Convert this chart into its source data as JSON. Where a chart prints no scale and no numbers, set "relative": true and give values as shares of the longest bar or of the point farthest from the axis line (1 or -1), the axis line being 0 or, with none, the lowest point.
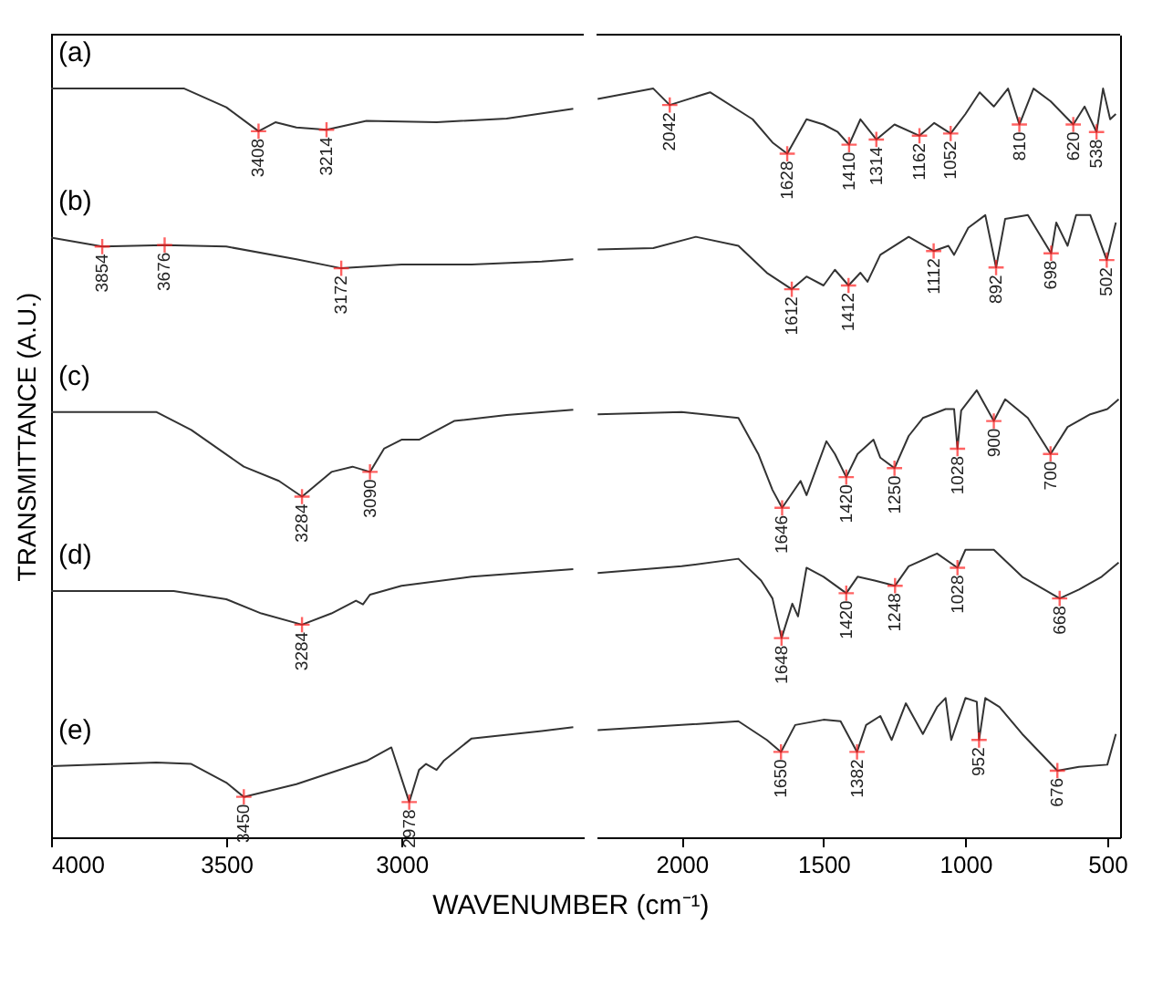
{
  "chart_data": [
    {
      "type": "line",
      "relative": true,
      "xlabel": "WAVENUMBER (cm⁻¹)",
      "ylabel": "TRANSMITTANCE (A.U.)",
      "xlim": [
        4000,
        2480
      ],
      "xticks": [
        4000,
        3500,
        3000
      ],
      "series": [
        {
          "name": "(a)",
          "color": "#333333",
          "x": [
            4000,
            3620,
            3500,
            3408,
            3360,
            3300,
            3214,
            3100,
            2900,
            2700,
            2510
          ],
          "values": [
            1.0,
            1.0,
            0.975,
            0.943,
            0.955,
            0.948,
            0.945,
            0.957,
            0.955,
            0.96,
            0.973
          ]
        },
        {
          "name": "(b)",
          "color": "#333333",
          "x": [
            4000,
            3854,
            3676,
            3500,
            3300,
            3172,
            3000,
            2800,
            2600,
            2510
          ],
          "values": [
            0.801,
            0.789,
            0.791,
            0.789,
            0.772,
            0.76,
            0.765,
            0.765,
            0.769,
            0.772
          ]
        },
        {
          "name": "(c)",
          "color": "#333333",
          "x": [
            4000,
            3700,
            3600,
            3450,
            3350,
            3284,
            3200,
            3140,
            3090,
            3050,
            3000,
            2950,
            2850,
            2700,
            2510
          ],
          "values": [
            0.568,
            0.568,
            0.544,
            0.495,
            0.476,
            0.455,
            0.488,
            0.495,
            0.488,
            0.519,
            0.531,
            0.531,
            0.556,
            0.564,
            0.571
          ]
        },
        {
          "name": "(d)",
          "color": "#333333",
          "x": [
            4000,
            3650,
            3500,
            3400,
            3284,
            3200,
            3130,
            3110,
            3090,
            3000,
            2800,
            2510
          ],
          "values": [
            0.329,
            0.329,
            0.318,
            0.299,
            0.284,
            0.299,
            0.316,
            0.311,
            0.324,
            0.336,
            0.348,
            0.358
          ]
        },
        {
          "name": "(e)",
          "color": "#333333",
          "x": [
            4000,
            3700,
            3600,
            3500,
            3450,
            3300,
            3100,
            3029,
            2978,
            2950,
            2930,
            2900,
            2880,
            2800,
            2600,
            2510
          ],
          "values": [
            0.095,
            0.1,
            0.098,
            0.073,
            0.054,
            0.071,
            0.102,
            0.12,
            0.047,
            0.09,
            0.098,
            0.09,
            0.102,
            0.132,
            0.142,
            0.147
          ]
        }
      ],
      "annotations": [
        {
          "text": "3408",
          "x": 3408,
          "y": 0.943
        },
        {
          "text": "3214",
          "x": 3214,
          "y": 0.945
        },
        {
          "text": "3854",
          "x": 3854,
          "y": 0.789
        },
        {
          "text": "3676",
          "x": 3676,
          "y": 0.791
        },
        {
          "text": "3172",
          "x": 3172,
          "y": 0.76
        },
        {
          "text": "3284",
          "x": 3284,
          "y": 0.455
        },
        {
          "text": "3090",
          "x": 3090,
          "y": 0.488
        },
        {
          "text": "3284",
          "x": 3284,
          "y": 0.284
        },
        {
          "text": "3450",
          "x": 3450,
          "y": 0.054
        },
        {
          "text": "2978",
          "x": 2978,
          "y": 0.047
        }
      ]
    },
    {
      "type": "line",
      "relative": true,
      "xlim": [
        2300,
        455
      ],
      "xticks": [
        2000,
        1500,
        1000,
        500
      ],
      "series": [
        {
          "color": "#333333",
          "x": [
            2296,
            2100,
            2042,
            1900,
            1750,
            1680,
            1628,
            1560,
            1500,
            1450,
            1410,
            1370,
            1314,
            1250,
            1162,
            1110,
            1052,
            1000,
            950,
            900,
            850,
            810,
            760,
            700,
            620,
            580,
            538,
            515,
            490,
            470
          ],
          "values": [
            0.986,
            1.0,
            0.978,
            0.995,
            0.959,
            0.928,
            0.913,
            0.959,
            0.952,
            0.942,
            0.925,
            0.959,
            0.932,
            0.952,
            0.937,
            0.954,
            0.94,
            0.966,
            0.995,
            0.976,
            1.0,
            0.952,
            1.0,
            0.983,
            0.952,
            0.976,
            0.942,
            1.0,
            0.959,
            0.966
          ]
        },
        {
          "color": "#333333",
          "x": [
            2296,
            2100,
            1950,
            1800,
            1700,
            1612,
            1560,
            1500,
            1460,
            1412,
            1370,
            1345,
            1300,
            1200,
            1112,
            1060,
            1040,
            990,
            930,
            892,
            860,
            780,
            698,
            680,
            640,
            610,
            560,
            502,
            470
          ],
          "values": [
            0.785,
            0.787,
            0.802,
            0.79,
            0.754,
            0.732,
            0.749,
            0.737,
            0.758,
            0.737,
            0.754,
            0.742,
            0.778,
            0.802,
            0.783,
            0.79,
            0.778,
            0.814,
            0.831,
            0.761,
            0.826,
            0.831,
            0.78,
            0.821,
            0.79,
            0.831,
            0.831,
            0.771,
            0.821
          ]
        },
        {
          "color": "#333333",
          "x": [
            2296,
            2000,
            1800,
            1730,
            1680,
            1646,
            1581,
            1560,
            1490,
            1460,
            1420,
            1380,
            1324,
            1300,
            1250,
            1200,
            1150,
            1070,
            1040,
            1028,
            1015,
            960,
            900,
            860,
            780,
            700,
            640,
            560,
            500,
            460
          ],
          "values": [
            0.565,
            0.568,
            0.56,
            0.512,
            0.464,
            0.44,
            0.476,
            0.457,
            0.529,
            0.512,
            0.481,
            0.512,
            0.531,
            0.507,
            0.493,
            0.536,
            0.56,
            0.572,
            0.572,
            0.519,
            0.57,
            0.597,
            0.556,
            0.585,
            0.56,
            0.512,
            0.548,
            0.565,
            0.572,
            0.585
          ]
        },
        {
          "color": "#333333",
          "x": [
            2296,
            2000,
            1800,
            1720,
            1680,
            1648,
            1610,
            1590,
            1560,
            1500,
            1420,
            1380,
            1320,
            1248,
            1200,
            1100,
            1028,
            1000,
            900,
            800,
            668,
            600,
            520,
            460
          ],
          "values": [
            0.353,
            0.362,
            0.372,
            0.343,
            0.319,
            0.266,
            0.312,
            0.295,
            0.36,
            0.348,
            0.326,
            0.348,
            0.343,
            0.336,
            0.362,
            0.379,
            0.36,
            0.384,
            0.384,
            0.348,
            0.319,
            0.331,
            0.348,
            0.367
          ]
        },
        {
          "color": "#333333",
          "x": [
            2296,
            2000,
            1800,
            1700,
            1650,
            1600,
            1500,
            1440,
            1382,
            1350,
            1300,
            1260,
            1210,
            1150,
            1100,
            1070,
            1050,
            1000,
            960,
            952,
            930,
            880,
            800,
            676,
            600,
            500,
            470
          ],
          "values": [
            0.143,
            0.15,
            0.155,
            0.13,
            0.114,
            0.15,
            0.157,
            0.155,
            0.114,
            0.15,
            0.162,
            0.13,
            0.179,
            0.138,
            0.174,
            0.186,
            0.13,
            0.186,
            0.181,
            0.13,
            0.186,
            0.174,
            0.138,
            0.089,
            0.094,
            0.097,
            0.138
          ]
        }
      ],
      "annotations": [
        {
          "text": "2042",
          "x": 2042,
          "y": 0.978
        },
        {
          "text": "1628",
          "x": 1628,
          "y": 0.913
        },
        {
          "text": "1410",
          "x": 1410,
          "y": 0.925
        },
        {
          "text": "1314",
          "x": 1314,
          "y": 0.932
        },
        {
          "text": "1162",
          "x": 1162,
          "y": 0.937
        },
        {
          "text": "1052",
          "x": 1052,
          "y": 0.94
        },
        {
          "text": "810",
          "x": 810,
          "y": 0.952
        },
        {
          "text": "620",
          "x": 620,
          "y": 0.952
        },
        {
          "text": "538",
          "x": 538,
          "y": 0.942
        },
        {
          "text": "1612",
          "x": 1612,
          "y": 0.732
        },
        {
          "text": "1412",
          "x": 1412,
          "y": 0.737
        },
        {
          "text": "1112",
          "x": 1112,
          "y": 0.783
        },
        {
          "text": "892",
          "x": 892,
          "y": 0.761
        },
        {
          "text": "698",
          "x": 698,
          "y": 0.78
        },
        {
          "text": "502",
          "x": 502,
          "y": 0.771
        },
        {
          "text": "1646",
          "x": 1646,
          "y": 0.44
        },
        {
          "text": "1420",
          "x": 1420,
          "y": 0.481
        },
        {
          "text": "1250",
          "x": 1250,
          "y": 0.493
        },
        {
          "text": "1028",
          "x": 1028,
          "y": 0.519
        },
        {
          "text": "900",
          "x": 900,
          "y": 0.556
        },
        {
          "text": "700",
          "x": 700,
          "y": 0.512
        },
        {
          "text": "1648",
          "x": 1648,
          "y": 0.266
        },
        {
          "text": "1420",
          "x": 1420,
          "y": 0.326
        },
        {
          "text": "1248",
          "x": 1248,
          "y": 0.336
        },
        {
          "text": "1028",
          "x": 1028,
          "y": 0.36
        },
        {
          "text": "668",
          "x": 668,
          "y": 0.319
        },
        {
          "text": "1650",
          "x": 1650,
          "y": 0.114
        },
        {
          "text": "1382",
          "x": 1382,
          "y": 0.114
        },
        {
          "text": "952",
          "x": 952,
          "y": 0.13
        },
        {
          "text": "676",
          "x": 676,
          "y": 0.089
        }
      ]
    }
  ]
}
